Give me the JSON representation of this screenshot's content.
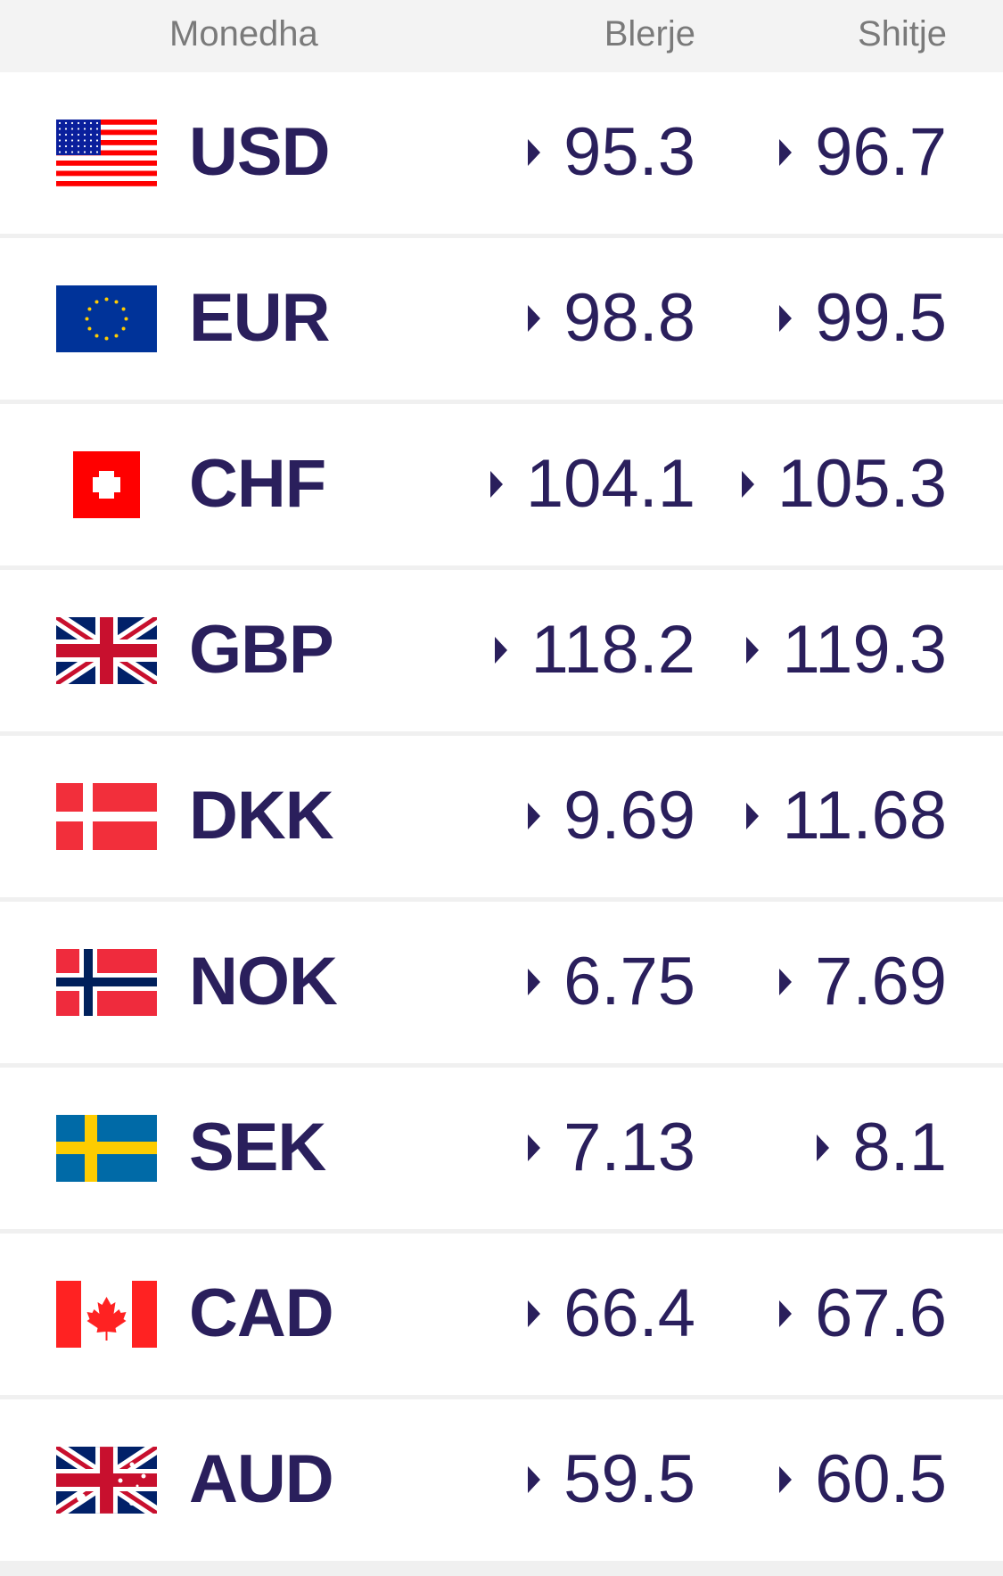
{
  "header": {
    "currency": "Monedha",
    "buy": "Blerje",
    "sell": "Shitje"
  },
  "colors": {
    "text": "#2a1f5c",
    "header_bg": "#f3f3f3",
    "header_text": "#7a7a7a"
  },
  "rows": [
    {
      "code": "USD",
      "flag": "us-flag-icon",
      "buy": "95.3",
      "sell": "96.7"
    },
    {
      "code": "EUR",
      "flag": "eu-flag-icon",
      "buy": "98.8",
      "sell": "99.5"
    },
    {
      "code": "CHF",
      "flag": "ch-flag-icon",
      "buy": "104.1",
      "sell": "105.3"
    },
    {
      "code": "GBP",
      "flag": "gb-flag-icon",
      "buy": "118.2",
      "sell": "119.3"
    },
    {
      "code": "DKK",
      "flag": "dk-flag-icon",
      "buy": "9.69",
      "sell": "11.68"
    },
    {
      "code": "NOK",
      "flag": "no-flag-icon",
      "buy": "6.75",
      "sell": "7.69"
    },
    {
      "code": "SEK",
      "flag": "se-flag-icon",
      "buy": "7.13",
      "sell": "8.1"
    },
    {
      "code": "CAD",
      "flag": "ca-flag-icon",
      "buy": "66.4",
      "sell": "67.6"
    },
    {
      "code": "AUD",
      "flag": "au-flag-icon",
      "buy": "59.5",
      "sell": "60.5"
    }
  ]
}
